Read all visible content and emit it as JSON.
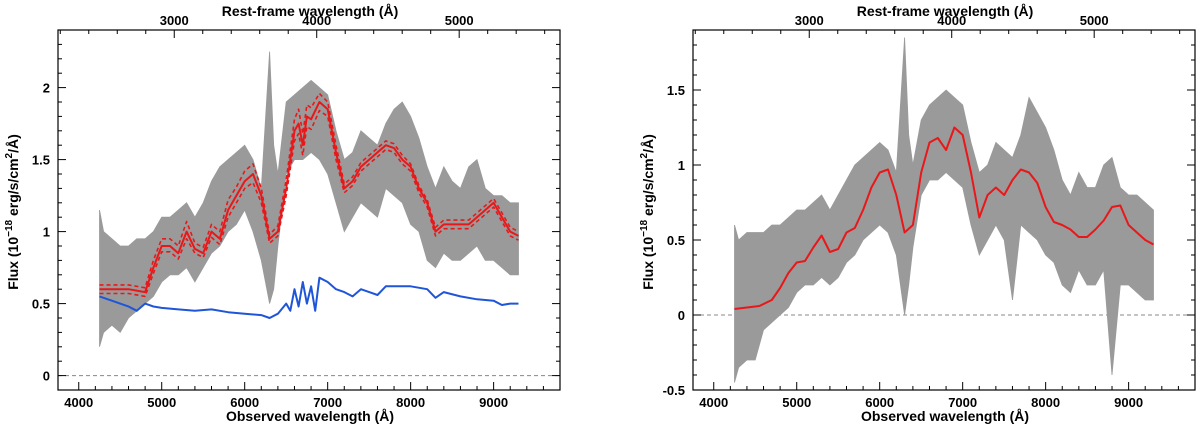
{
  "chart_data": [
    {
      "type": "line",
      "xlabel": "Observed wavelength (Å)",
      "ylabel_prefix": "Flux (10",
      "ylabel_exp": "−18",
      "ylabel_mid": " erg/s/cm",
      "ylabel_sq": "2",
      "ylabel_suffix": "/Å)",
      "top_xlabel": "Rest-frame wavelength (Å)",
      "xlim": [
        3750,
        9800
      ],
      "ylim": [
        -0.1,
        2.4
      ],
      "x_ticks": [
        "4000",
        "5000",
        "6000",
        "7000",
        "8000",
        "9000"
      ],
      "x_tick_values": [
        4000,
        5000,
        6000,
        7000,
        8000,
        9000
      ],
      "y_ticks": [
        "0",
        "0.5",
        "1",
        "1.5",
        "2"
      ],
      "y_tick_values": [
        0,
        0.5,
        1,
        1.5,
        2
      ],
      "top_ticks": [
        "3000",
        "4000",
        "5000"
      ],
      "top_tick_values": [
        3000,
        4000,
        5000
      ],
      "rest_factor": 1.717,
      "zero_line": true,
      "series": [
        {
          "role": "observed",
          "color": "#9a9a9a",
          "x": [
            4250,
            4300,
            4400,
            4500,
            4600,
            4700,
            4800,
            4900,
            5000,
            5100,
            5200,
            5300,
            5400,
            5500,
            5600,
            5700,
            5800,
            5900,
            6000,
            6100,
            6200,
            6300,
            6350,
            6400,
            6500,
            6600,
            6700,
            6800,
            6900,
            7000,
            7100,
            7200,
            7300,
            7400,
            7500,
            7600,
            7700,
            7800,
            7900,
            8000,
            8100,
            8200,
            8300,
            8400,
            8500,
            8600,
            8700,
            8800,
            8900,
            9000,
            9100,
            9200,
            9300
          ],
          "low": [
            0.2,
            0.3,
            0.35,
            0.3,
            0.4,
            0.45,
            0.5,
            0.55,
            0.65,
            0.7,
            0.7,
            0.75,
            0.65,
            0.75,
            0.85,
            0.9,
            1.0,
            1.05,
            1.15,
            1.0,
            0.8,
            0.5,
            0.6,
            0.9,
            1.4,
            1.5,
            1.5,
            1.55,
            1.5,
            1.4,
            1.2,
            1.0,
            1.1,
            1.2,
            1.15,
            1.1,
            1.3,
            1.25,
            1.2,
            1.05,
            1.0,
            0.8,
            0.75,
            0.85,
            0.8,
            0.8,
            0.85,
            0.9,
            0.8,
            0.8,
            0.75,
            0.7,
            0.7
          ],
          "high": [
            1.15,
            1.0,
            0.95,
            0.9,
            0.9,
            0.95,
            0.95,
            1.0,
            1.1,
            1.1,
            1.15,
            1.2,
            1.1,
            1.2,
            1.35,
            1.45,
            1.5,
            1.55,
            1.6,
            1.5,
            1.3,
            2.25,
            1.6,
            1.4,
            1.9,
            1.95,
            2.0,
            2.05,
            2.0,
            1.95,
            1.7,
            1.5,
            1.55,
            1.7,
            1.65,
            1.6,
            1.75,
            1.85,
            1.9,
            1.8,
            1.65,
            1.45,
            1.3,
            1.45,
            1.35,
            1.3,
            1.45,
            1.5,
            1.3,
            1.25,
            1.25,
            1.2,
            1.2
          ]
        },
        {
          "role": "model",
          "color": "#e8181a",
          "x": [
            4250,
            4400,
            4600,
            4800,
            4900,
            5000,
            5100,
            5200,
            5300,
            5400,
            5500,
            5600,
            5700,
            5800,
            5900,
            6000,
            6100,
            6200,
            6300,
            6400,
            6500,
            6600,
            6650,
            6700,
            6750,
            6800,
            6900,
            7000,
            7100,
            7200,
            7300,
            7400,
            7500,
            7600,
            7700,
            7800,
            7900,
            8000,
            8100,
            8200,
            8300,
            8400,
            8500,
            8600,
            8700,
            8800,
            8900,
            9000,
            9100,
            9200,
            9300
          ],
          "y": [
            0.6,
            0.6,
            0.6,
            0.58,
            0.75,
            0.9,
            0.9,
            0.85,
            1.0,
            0.88,
            0.85,
            1.0,
            0.95,
            1.15,
            1.25,
            1.35,
            1.4,
            1.25,
            0.95,
            1.0,
            1.3,
            1.7,
            1.75,
            1.6,
            1.8,
            1.78,
            1.9,
            1.85,
            1.55,
            1.3,
            1.35,
            1.45,
            1.5,
            1.55,
            1.6,
            1.58,
            1.5,
            1.45,
            1.3,
            1.2,
            1.0,
            1.05,
            1.05,
            1.05,
            1.05,
            1.1,
            1.15,
            1.2,
            1.1,
            1.0,
            0.97
          ]
        },
        {
          "role": "model-dashed-upper",
          "color": "#e8181a",
          "dash": true,
          "x": [
            4250,
            4400,
            4600,
            4800,
            4900,
            5000,
            5100,
            5200,
            5300,
            5400,
            5500,
            5600,
            5700,
            5800,
            5900,
            6000,
            6100,
            6200,
            6300,
            6400,
            6500,
            6600,
            6650,
            6700,
            6750,
            6800,
            6900,
            7000,
            7100,
            7200,
            7300,
            7400,
            7500,
            7600,
            7700,
            7800,
            7900,
            8000,
            8100,
            8200,
            8300,
            8400,
            8500,
            8600,
            8700,
            8800,
            8900,
            9000,
            9100,
            9200,
            9300
          ],
          "y": [
            0.63,
            0.63,
            0.63,
            0.61,
            0.8,
            0.95,
            0.95,
            0.9,
            1.07,
            0.92,
            0.89,
            1.05,
            1.0,
            1.22,
            1.31,
            1.42,
            1.47,
            1.3,
            0.98,
            1.04,
            1.36,
            1.78,
            1.85,
            1.68,
            1.88,
            1.86,
            1.96,
            1.9,
            1.6,
            1.33,
            1.38,
            1.48,
            1.53,
            1.58,
            1.63,
            1.61,
            1.53,
            1.47,
            1.32,
            1.22,
            1.03,
            1.08,
            1.08,
            1.08,
            1.08,
            1.13,
            1.18,
            1.23,
            1.13,
            1.03,
            1.0
          ]
        },
        {
          "role": "model-dashed-lower",
          "color": "#e8181a",
          "dash": true,
          "x": [
            4250,
            4400,
            4600,
            4800,
            4900,
            5000,
            5100,
            5200,
            5300,
            5400,
            5500,
            5600,
            5700,
            5800,
            5900,
            6000,
            6100,
            6200,
            6300,
            6400,
            6500,
            6600,
            6650,
            6700,
            6750,
            6800,
            6900,
            7000,
            7100,
            7200,
            7300,
            7400,
            7500,
            7600,
            7700,
            7800,
            7900,
            8000,
            8100,
            8200,
            8300,
            8400,
            8500,
            8600,
            8700,
            8800,
            8900,
            9000,
            9100,
            9200,
            9300
          ],
          "y": [
            0.57,
            0.57,
            0.57,
            0.55,
            0.71,
            0.86,
            0.86,
            0.81,
            0.95,
            0.85,
            0.82,
            0.96,
            0.91,
            1.1,
            1.2,
            1.3,
            1.34,
            1.2,
            0.92,
            0.97,
            1.25,
            1.63,
            1.68,
            1.53,
            1.73,
            1.71,
            1.84,
            1.8,
            1.5,
            1.27,
            1.32,
            1.42,
            1.47,
            1.52,
            1.57,
            1.55,
            1.47,
            1.42,
            1.27,
            1.17,
            0.97,
            1.02,
            1.02,
            1.02,
            1.02,
            1.07,
            1.12,
            1.17,
            1.07,
            0.97,
            0.94
          ]
        },
        {
          "role": "component",
          "color": "#1f55d8",
          "x": [
            4250,
            4400,
            4600,
            4700,
            4800,
            4900,
            5000,
            5200,
            5400,
            5600,
            5800,
            6000,
            6200,
            6300,
            6400,
            6500,
            6550,
            6600,
            6650,
            6700,
            6750,
            6800,
            6850,
            6900,
            7000,
            7100,
            7200,
            7300,
            7400,
            7500,
            7600,
            7700,
            7800,
            8000,
            8200,
            8300,
            8400,
            8600,
            8800,
            9000,
            9100,
            9200,
            9300
          ],
          "y": [
            0.55,
            0.52,
            0.48,
            0.45,
            0.5,
            0.48,
            0.47,
            0.46,
            0.45,
            0.46,
            0.44,
            0.43,
            0.42,
            0.4,
            0.43,
            0.5,
            0.45,
            0.6,
            0.48,
            0.65,
            0.5,
            0.62,
            0.45,
            0.68,
            0.65,
            0.6,
            0.58,
            0.55,
            0.6,
            0.58,
            0.56,
            0.62,
            0.62,
            0.62,
            0.6,
            0.54,
            0.58,
            0.55,
            0.53,
            0.52,
            0.49,
            0.5,
            0.5
          ]
        }
      ]
    },
    {
      "type": "line",
      "xlabel": "Observed wavelength (Å)",
      "ylabel_prefix": "Flux (10",
      "ylabel_exp": "−18",
      "ylabel_mid": " erg/s/cm",
      "ylabel_sq": "2",
      "ylabel_suffix": "/Å)",
      "top_xlabel": "Rest-frame wavelength (Å)",
      "xlim": [
        3750,
        9800
      ],
      "ylim": [
        -0.5,
        1.9
      ],
      "x_ticks": [
        "4000",
        "5000",
        "6000",
        "7000",
        "8000",
        "9000"
      ],
      "x_tick_values": [
        4000,
        5000,
        6000,
        7000,
        8000,
        9000
      ],
      "y_ticks": [
        "-0.5",
        "0",
        "0.5",
        "1",
        "1.5"
      ],
      "y_tick_values": [
        -0.5,
        0,
        0.5,
        1,
        1.5
      ],
      "top_ticks": [
        "3000",
        "4000",
        "5000"
      ],
      "top_tick_values": [
        3000,
        4000,
        5000
      ],
      "rest_factor": 1.717,
      "zero_line": true,
      "series": [
        {
          "role": "observed",
          "color": "#9a9a9a",
          "x": [
            4250,
            4300,
            4400,
            4500,
            4600,
            4700,
            4800,
            4900,
            5000,
            5100,
            5200,
            5300,
            5400,
            5500,
            5600,
            5700,
            5800,
            5900,
            6000,
            6100,
            6200,
            6300,
            6350,
            6400,
            6500,
            6600,
            6700,
            6800,
            6900,
            7000,
            7100,
            7200,
            7300,
            7400,
            7500,
            7600,
            7700,
            7800,
            7900,
            8000,
            8100,
            8200,
            8300,
            8400,
            8500,
            8600,
            8700,
            8800,
            8900,
            9000,
            9100,
            9200,
            9300
          ],
          "low": [
            -0.45,
            -0.35,
            -0.3,
            -0.3,
            -0.1,
            -0.05,
            0.0,
            0.05,
            0.15,
            0.2,
            0.2,
            0.25,
            0.2,
            0.25,
            0.35,
            0.4,
            0.5,
            0.55,
            0.6,
            0.55,
            0.4,
            0.0,
            0.2,
            0.45,
            0.8,
            0.9,
            0.9,
            0.95,
            0.9,
            0.85,
            0.6,
            0.4,
            0.5,
            0.6,
            0.5,
            0.1,
            0.6,
            0.55,
            0.5,
            0.4,
            0.35,
            0.2,
            0.15,
            0.3,
            0.2,
            0.2,
            0.3,
            -0.4,
            0.2,
            0.2,
            0.15,
            0.1,
            0.1
          ],
          "high": [
            0.6,
            0.5,
            0.55,
            0.55,
            0.55,
            0.6,
            0.6,
            0.65,
            0.7,
            0.7,
            0.75,
            0.8,
            0.7,
            0.8,
            0.9,
            1.0,
            1.05,
            1.1,
            1.15,
            1.1,
            0.95,
            1.85,
            1.2,
            1.0,
            1.3,
            1.4,
            1.45,
            1.5,
            1.45,
            1.4,
            1.15,
            0.95,
            1.0,
            1.15,
            1.1,
            1.05,
            1.2,
            1.45,
            1.35,
            1.25,
            1.1,
            0.9,
            0.8,
            0.95,
            0.85,
            0.85,
            1.0,
            1.05,
            0.85,
            0.8,
            0.8,
            0.75,
            0.7
          ]
        },
        {
          "role": "model",
          "color": "#e8181a",
          "x": [
            4250,
            4400,
            4550,
            4700,
            4800,
            4900,
            5000,
            5100,
            5200,
            5300,
            5400,
            5500,
            5600,
            5700,
            5800,
            5900,
            6000,
            6100,
            6200,
            6300,
            6400,
            6500,
            6600,
            6700,
            6800,
            6900,
            7000,
            7100,
            7200,
            7300,
            7400,
            7500,
            7600,
            7700,
            7800,
            7900,
            8000,
            8100,
            8200,
            8300,
            8400,
            8500,
            8600,
            8700,
            8800,
            8900,
            9000,
            9100,
            9200,
            9300
          ],
          "y": [
            0.04,
            0.05,
            0.06,
            0.1,
            0.18,
            0.28,
            0.35,
            0.36,
            0.45,
            0.53,
            0.42,
            0.44,
            0.55,
            0.58,
            0.7,
            0.85,
            0.95,
            0.97,
            0.8,
            0.55,
            0.6,
            0.95,
            1.15,
            1.18,
            1.1,
            1.25,
            1.2,
            0.95,
            0.65,
            0.8,
            0.85,
            0.8,
            0.9,
            0.97,
            0.95,
            0.88,
            0.72,
            0.62,
            0.6,
            0.57,
            0.52,
            0.52,
            0.57,
            0.63,
            0.72,
            0.73,
            0.6,
            0.55,
            0.5,
            0.47
          ]
        }
      ]
    }
  ]
}
